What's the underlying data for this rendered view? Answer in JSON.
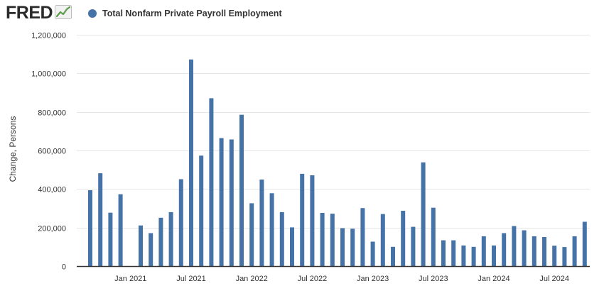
{
  "logo": {
    "text": "FRED",
    "icon": "line-chart-icon"
  },
  "colors": {
    "series": "#4572a7",
    "grid": "#e6e6e6",
    "axis": "#333333",
    "text": "#333333",
    "logo_icon_line": "#5b9b4a"
  },
  "chart_data": {
    "type": "bar",
    "title": "",
    "xlabel": "",
    "ylabel": "Change, Persons",
    "ylim": [
      0,
      1200000
    ],
    "yticks": [
      0,
      200000,
      400000,
      600000,
      800000,
      1000000,
      1200000
    ],
    "ytick_labels": [
      "0",
      "200,000",
      "400,000",
      "600,000",
      "800,000",
      "1,000,000",
      "1,200,000"
    ],
    "xticks": [
      "2021-01",
      "2021-07",
      "2022-01",
      "2022-07",
      "2023-01",
      "2023-07",
      "2024-01",
      "2024-07"
    ],
    "xtick_labels": [
      "Jan 2021",
      "Jul 2021",
      "Jan 2022",
      "Jul 2022",
      "Jan 2023",
      "Jul 2023",
      "Jan 2024",
      "Jul 2024"
    ],
    "grid": true,
    "legend": "top-left",
    "series": [
      {
        "name": "Total Nonfarm Private Payroll Employment",
        "color": "#4572a7",
        "x": [
          "2020-09",
          "2020-10",
          "2020-11",
          "2020-12",
          "2021-01",
          "2021-02",
          "2021-03",
          "2021-04",
          "2021-05",
          "2021-06",
          "2021-07",
          "2021-08",
          "2021-09",
          "2021-10",
          "2021-11",
          "2021-12",
          "2022-01",
          "2022-02",
          "2022-03",
          "2022-04",
          "2022-05",
          "2022-06",
          "2022-07",
          "2022-08",
          "2022-09",
          "2022-10",
          "2022-11",
          "2022-12",
          "2023-01",
          "2023-02",
          "2023-03",
          "2023-04",
          "2023-05",
          "2023-06",
          "2023-07",
          "2023-08",
          "2023-09",
          "2023-10",
          "2023-11",
          "2023-12",
          "2024-01",
          "2024-02",
          "2024-03",
          "2024-04",
          "2024-05",
          "2024-06",
          "2024-07",
          "2024-08",
          "2024-09",
          "2024-10"
        ],
        "values": [
          394000,
          482000,
          277000,
          373000,
          null,
          211000,
          171000,
          251000,
          280000,
          451000,
          1072000,
          573000,
          871000,
          664000,
          657000,
          785000,
          326000,
          449000,
          378000,
          280000,
          201000,
          479000,
          471000,
          276000,
          272000,
          197000,
          194000,
          301000,
          127000,
          270000,
          100000,
          287000,
          204000,
          538000,
          303000,
          134000,
          134000,
          107000,
          100000,
          155000,
          107000,
          171000,
          208000,
          186000,
          155000,
          151000,
          106000,
          99000,
          155000,
          230000
        ]
      }
    ]
  }
}
